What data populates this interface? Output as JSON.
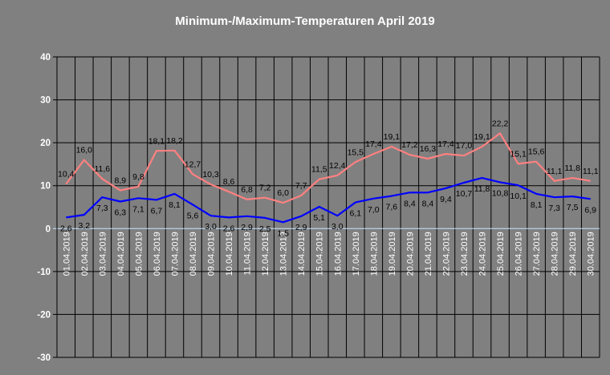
{
  "chart_data": {
    "type": "line",
    "title": "Minimum-/Maximum-Temperaturen April 2019",
    "xlabel": "",
    "ylabel": "",
    "ylim": [
      -30,
      40
    ],
    "yticks": [
      -30,
      -20,
      -10,
      0,
      10,
      20,
      30,
      40
    ],
    "grid": true,
    "categories": [
      "01.04.2019",
      "02.04.2019",
      "03.04.2019",
      "04.04.2019",
      "05.04.2019",
      "06.04.2019",
      "07.04.2019",
      "08.04.2019",
      "09.04.2019",
      "10.04.2019",
      "11.04.2019",
      "12.04.2019",
      "13.04.2019",
      "14.04.2019",
      "15.04.2019",
      "16.04.2019",
      "17.04.2019",
      "18.04.2019",
      "19.04.2019",
      "20.04.2019",
      "21.04.2019",
      "22.04.2019",
      "23.04.2019",
      "24.04.2019",
      "25.04.2019",
      "26.04.2019",
      "27.04.2019",
      "28.04.2019",
      "29.04.2019",
      "30.04.2019"
    ],
    "series": [
      {
        "color": "#ff8080",
        "values": [
          10.4,
          16.0,
          11.6,
          8.9,
          9.8,
          18.1,
          18.2,
          12.7,
          10.3,
          8.6,
          6.8,
          7.2,
          6.0,
          7.7,
          11.5,
          12.4,
          15.5,
          17.4,
          19.1,
          17.2,
          16.3,
          17.4,
          17.0,
          19.1,
          22.2,
          15.1,
          15.6,
          11.1,
          11.8,
          11.1
        ]
      },
      {
        "color": "#0000ff",
        "values": [
          2.6,
          3.2,
          7.3,
          6.3,
          7.1,
          6.7,
          8.1,
          5.6,
          3.0,
          2.6,
          2.9,
          2.5,
          1.5,
          2.9,
          5.1,
          3.0,
          6.1,
          7.0,
          7.6,
          8.4,
          8.4,
          9.4,
          10.7,
          11.8,
          10.8,
          10.1,
          8.1,
          7.3,
          7.5,
          6.9
        ]
      }
    ],
    "zero_line_color": "#c8e6ff",
    "plot_background": "#808080"
  }
}
